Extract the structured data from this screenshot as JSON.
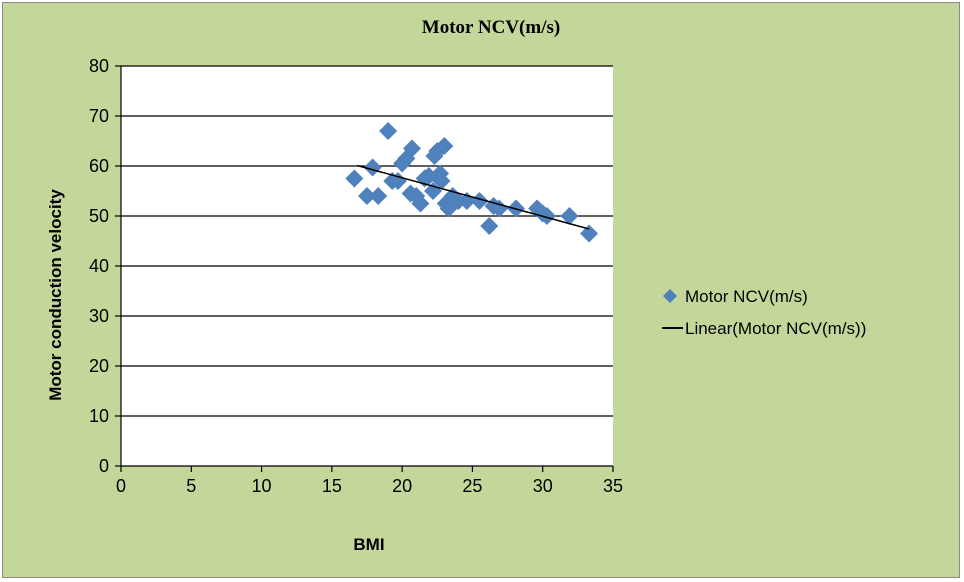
{
  "colors": {
    "background": "#c4d79b",
    "plot_background": "#ffffff",
    "marker": "#4f81bd",
    "trendline": "#000000",
    "gridline": "#000000"
  },
  "chart_data": {
    "type": "scatter",
    "title": "Motor NCV(m/s)",
    "xlabel": "BMI",
    "ylabel": "Motor conduction velocity",
    "xlim": [
      0,
      35
    ],
    "ylim": [
      0,
      80
    ],
    "x_ticks": [
      0,
      5,
      10,
      15,
      20,
      25,
      30,
      35
    ],
    "y_ticks": [
      0,
      10,
      20,
      30,
      40,
      50,
      60,
      70,
      80
    ],
    "grid": "horizontal",
    "legend_position": "right",
    "series": [
      {
        "name": "Motor NCV(m/s)",
        "marker": "diamond",
        "points": [
          [
            16.6,
            57.5
          ],
          [
            17.5,
            54
          ],
          [
            17.9,
            59.7
          ],
          [
            18.3,
            54
          ],
          [
            19.0,
            67
          ],
          [
            19.3,
            57
          ],
          [
            19.7,
            57
          ],
          [
            20.0,
            60.5
          ],
          [
            20.3,
            61.5
          ],
          [
            20.7,
            63.5
          ],
          [
            20.6,
            54.5
          ],
          [
            21.0,
            54
          ],
          [
            21.3,
            52.5
          ],
          [
            21.6,
            57.5
          ],
          [
            21.9,
            58
          ],
          [
            22.2,
            55
          ],
          [
            22.3,
            62
          ],
          [
            22.5,
            63
          ],
          [
            22.7,
            58.5
          ],
          [
            22.8,
            57
          ],
          [
            23.0,
            64
          ],
          [
            23.1,
            52.5
          ],
          [
            23.3,
            51.5
          ],
          [
            23.6,
            54
          ],
          [
            24.0,
            53
          ],
          [
            24.6,
            53
          ],
          [
            25.5,
            53
          ],
          [
            26.2,
            48
          ],
          [
            26.5,
            52
          ],
          [
            26.9,
            51.5
          ],
          [
            28.1,
            51.5
          ],
          [
            29.6,
            51.5
          ],
          [
            30.0,
            50.5
          ],
          [
            30.3,
            50
          ],
          [
            31.9,
            50
          ],
          [
            33.3,
            46.5
          ]
        ]
      },
      {
        "name": "Linear(Motor NCV(m/s))",
        "type": "trendline",
        "start": [
          16.8,
          60.1
        ],
        "end": [
          33.3,
          47.4
        ]
      }
    ]
  }
}
